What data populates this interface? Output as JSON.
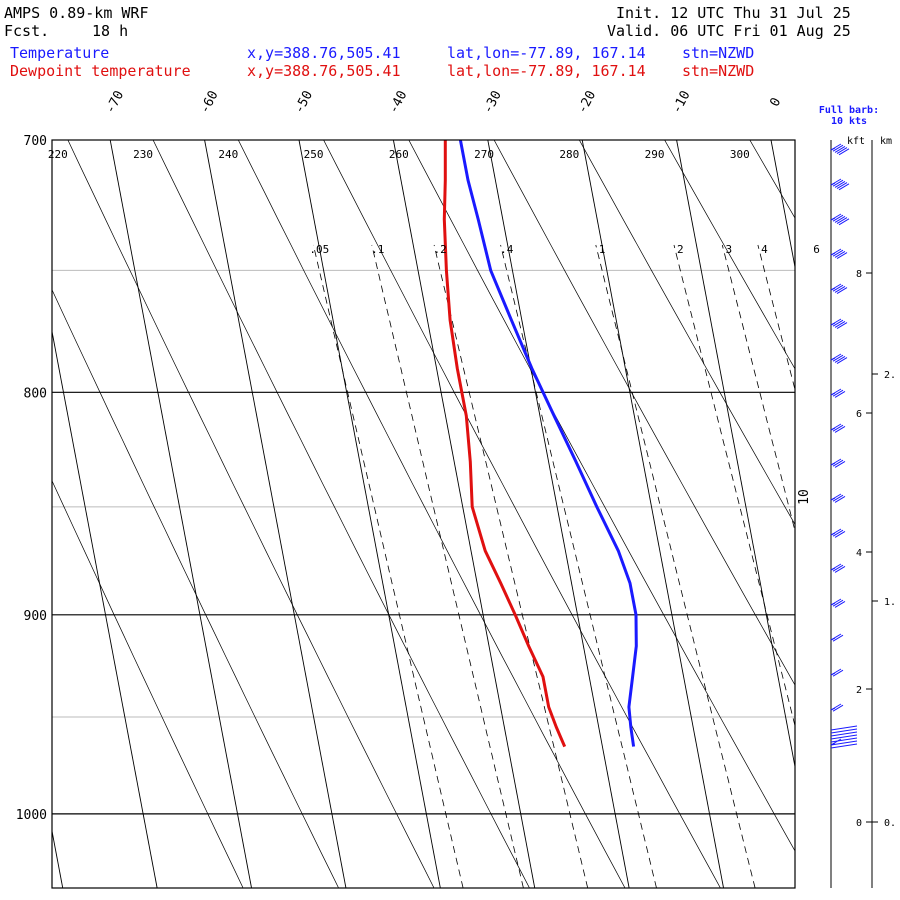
{
  "header": {
    "model": "AMPS 0.89-km WRF",
    "fcst_label": "Fcst.",
    "fcst_value": "18 h",
    "init": "Init. 12 UTC Thu 31 Jul 25",
    "valid": "Valid. 06 UTC Fri 01 Aug 25",
    "temp_label": "Temperature",
    "dew_label": "Dewpoint temperature",
    "xy": "x,y=388.76,505.41",
    "latlon": "lat,lon=-77.89, 167.14",
    "stn": "stn=NZWD"
  },
  "barb_legend": {
    "line1": "Full barb:",
    "line2": "10 kts"
  },
  "height_axis": {
    "left_label": "kft",
    "right_label": "km"
  },
  "colors": {
    "temperature": "#1a1aff",
    "dewpoint": "#e01010",
    "axis": "#000000",
    "grid": "#bbbbbb"
  },
  "chart_data": {
    "type": "line",
    "title": "",
    "diagram": "skew-T log-p",
    "ylabel": "",
    "y_axis": {
      "ylim": [
        1040,
        700
      ],
      "scale": "log",
      "ticks": [
        700,
        800,
        900,
        1000
      ]
    },
    "x_axis": {
      "temperature_range_c": [
        -77,
        4
      ],
      "temperature_ticks": [
        -70,
        -60,
        -50,
        -40,
        -30,
        -20,
        -10,
        0
      ]
    },
    "minor_isobars": [
      750,
      850,
      950
    ],
    "potential_temperature_labels_k": [
      220,
      230,
      240,
      250,
      260,
      270,
      280,
      290,
      300
    ],
    "mixing_ratio_labels": [
      ".05",
      ".1",
      ".2",
      ".4",
      "1",
      "2",
      "3",
      "4",
      "6",
      "10"
    ],
    "kft_ticks": [
      "0",
      "2",
      "4",
      "6",
      "8"
    ],
    "km_ticks": [
      "0.",
      "1.",
      "2."
    ],
    "series": [
      {
        "name": "Temperature",
        "color": "#1a1aff",
        "pressure_hpa": [
          965,
          955,
          945,
          930,
          915,
          900,
          885,
          870,
          850,
          830,
          810,
          790,
          770,
          750,
          730,
          715,
          700
        ],
        "temperature_c": [
          -26.7,
          -26.6,
          -26.4,
          -25.4,
          -24.4,
          -23.8,
          -23.8,
          -24.4,
          -25.8,
          -27.1,
          -28.5,
          -29.9,
          -31.1,
          -32.3,
          -32.6,
          -32.9,
          -32.9
        ]
      },
      {
        "name": "Dewpoint temperature",
        "color": "#e01010",
        "pressure_hpa": [
          965,
          955,
          945,
          930,
          915,
          900,
          885,
          870,
          850,
          830,
          810,
          790,
          770,
          750,
          730,
          715,
          700
        ],
        "temperature_c": [
          -34.0,
          -34.5,
          -34.9,
          -34.9,
          -35.8,
          -36.6,
          -37.5,
          -38.5,
          -39.0,
          -38.3,
          -37.8,
          -37.8,
          -37.6,
          -37.0,
          -36.2,
          -35.3,
          -34.5
        ]
      }
    ],
    "wind_profile": {
      "speed_kts": [
        10,
        10,
        9,
        8,
        8,
        7,
        7,
        6,
        6,
        6,
        5,
        5,
        5,
        5,
        4,
        4,
        3,
        2
      ]
    }
  }
}
